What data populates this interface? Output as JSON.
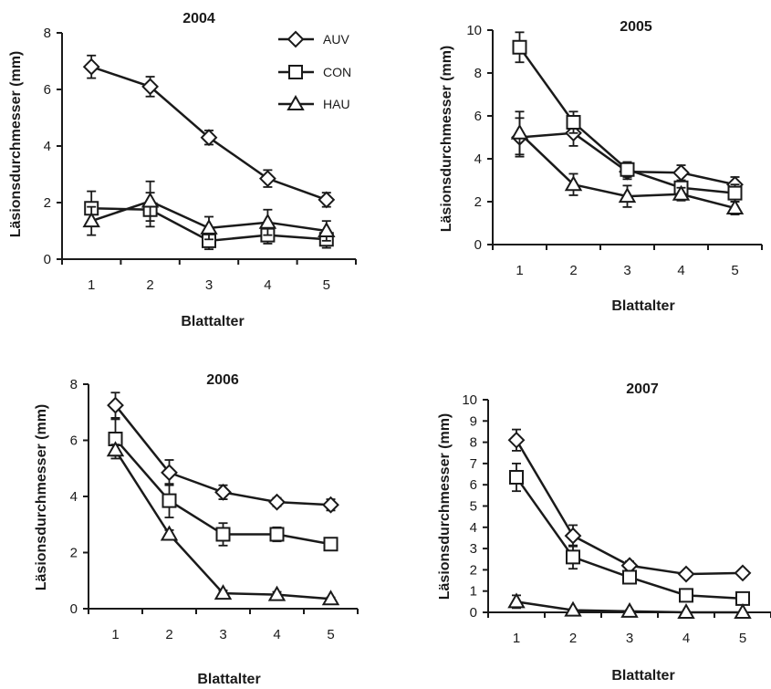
{
  "legend": [
    {
      "series": "AUV",
      "label": "AUV",
      "marker": "diamond"
    },
    {
      "series": "CON",
      "label": "CON",
      "marker": "square"
    },
    {
      "series": "HAU",
      "label": "HAU",
      "marker": "triangle"
    }
  ],
  "colors": {
    "line": "#1a1a1a",
    "marker_fill": "#ffffff",
    "background": "#ffffff"
  },
  "chart_data": [
    {
      "type": "line",
      "title": "2004",
      "xlabel": "Blattalter",
      "ylabel": "Läsionsdurchmesser (mm)",
      "x": [
        1,
        2,
        3,
        4,
        5
      ],
      "ylim": [
        0,
        8
      ],
      "yticks": [
        0,
        2,
        4,
        6,
        8
      ],
      "legend_position": "top-right",
      "series": [
        {
          "name": "AUV",
          "marker": "diamond",
          "values": [
            6.8,
            6.1,
            4.3,
            2.85,
            2.1
          ],
          "error": [
            0.4,
            0.35,
            0.25,
            0.3,
            0.25
          ]
        },
        {
          "name": "CON",
          "marker": "square",
          "values": [
            1.8,
            1.75,
            0.65,
            0.85,
            0.7
          ],
          "error": [
            0.6,
            0.6,
            0.3,
            0.3,
            0.3
          ]
        },
        {
          "name": "HAU",
          "marker": "triangle",
          "values": [
            1.35,
            2.05,
            1.1,
            1.3,
            1.0
          ],
          "error": [
            0.5,
            0.7,
            0.4,
            0.45,
            0.35
          ]
        }
      ]
    },
    {
      "type": "line",
      "title": "2005",
      "xlabel": "Blattalter",
      "ylabel": "Läsionsdurchmesser (mm)",
      "x": [
        1,
        2,
        3,
        4,
        5
      ],
      "ylim": [
        0,
        10
      ],
      "yticks": [
        0,
        2,
        4,
        6,
        8,
        10
      ],
      "series": [
        {
          "name": "AUV",
          "marker": "diamond",
          "values": [
            5.0,
            5.2,
            3.4,
            3.35,
            2.8
          ],
          "error": [
            0.9,
            0.6,
            0.35,
            0.35,
            0.35
          ]
        },
        {
          "name": "CON",
          "marker": "square",
          "values": [
            9.2,
            5.7,
            3.5,
            2.65,
            2.4
          ],
          "error": [
            0.7,
            0.5,
            0.35,
            0.3,
            0.4
          ]
        },
        {
          "name": "HAU",
          "marker": "triangle",
          "values": [
            5.2,
            2.8,
            2.25,
            2.35,
            1.7
          ],
          "error": [
            1.0,
            0.5,
            0.5,
            0.3,
            0.3
          ]
        }
      ]
    },
    {
      "type": "line",
      "title": "2006",
      "xlabel": "Blattalter",
      "ylabel": "Läsionsdurchmesser (mm)",
      "x": [
        1,
        2,
        3,
        4,
        5
      ],
      "ylim": [
        0,
        8
      ],
      "yticks": [
        0,
        2,
        4,
        6,
        8
      ],
      "series": [
        {
          "name": "AUV",
          "marker": "diamond",
          "values": [
            7.25,
            4.85,
            4.15,
            3.8,
            3.7
          ],
          "error": [
            0.45,
            0.45,
            0.25,
            0.15,
            0.2
          ]
        },
        {
          "name": "CON",
          "marker": "square",
          "values": [
            6.05,
            3.85,
            2.65,
            2.65,
            2.3
          ],
          "error": [
            0.7,
            0.6,
            0.4,
            0.25,
            0.15
          ]
        },
        {
          "name": "HAU",
          "marker": "triangle",
          "values": [
            5.65,
            2.65,
            0.55,
            0.5,
            0.35
          ],
          "error": [
            0.2,
            0.15,
            0.1,
            0.1,
            0.05
          ]
        }
      ]
    },
    {
      "type": "line",
      "title": "2007",
      "xlabel": "Blattalter",
      "ylabel": "Läsionsdurchmesser (mm)",
      "x": [
        1,
        2,
        3,
        4,
        5
      ],
      "ylim": [
        0,
        10
      ],
      "yticks": [
        0,
        1,
        2,
        3,
        4,
        5,
        6,
        7,
        8,
        9,
        10
      ],
      "series": [
        {
          "name": "AUV",
          "marker": "diamond",
          "values": [
            8.1,
            3.6,
            2.2,
            1.8,
            1.85
          ],
          "error": [
            0.5,
            0.5,
            0.2,
            0.1,
            0.15
          ]
        },
        {
          "name": "CON",
          "marker": "square",
          "values": [
            6.35,
            2.6,
            1.65,
            0.8,
            0.65
          ],
          "error": [
            0.65,
            0.55,
            0.3,
            0.2,
            0.15
          ]
        },
        {
          "name": "HAU",
          "marker": "triangle",
          "values": [
            0.5,
            0.1,
            0.05,
            0.0,
            0.0
          ],
          "error": [
            0.3,
            0.05,
            0.05,
            0.0,
            0.0
          ]
        }
      ]
    }
  ]
}
